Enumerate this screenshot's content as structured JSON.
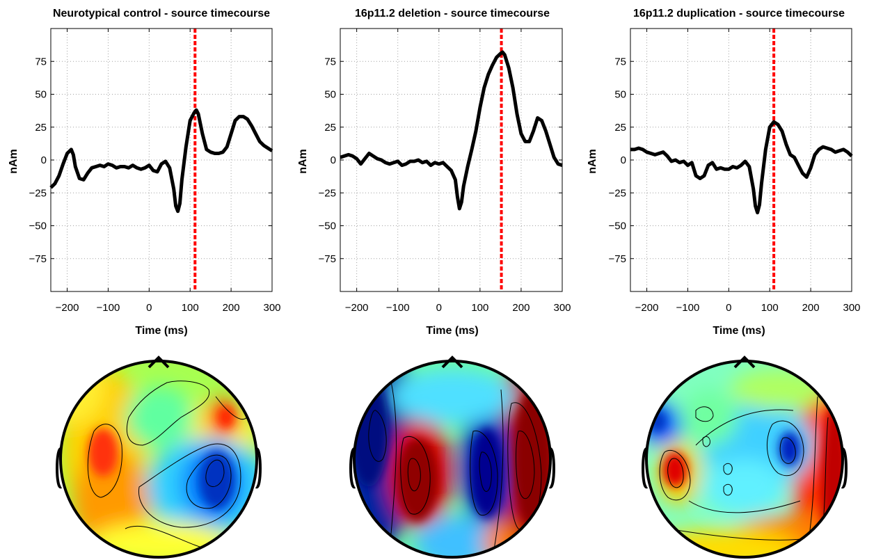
{
  "chart_data": [
    {
      "type": "line",
      "title": "Neurotypical control - source timecourse",
      "xlabel": "Time (ms)",
      "ylabel": "nAm",
      "xlim": [
        -240,
        300
      ],
      "ylim": [
        -100,
        100
      ],
      "xticks": [
        -200,
        -100,
        0,
        100,
        200,
        300
      ],
      "yticks": [
        75,
        50,
        25,
        0,
        -25,
        -50,
        -75
      ],
      "xtick_labels": [
        "−200",
        "−100",
        "0",
        "100",
        "200",
        "300"
      ],
      "ytick_labels": [
        "75",
        "50",
        "25",
        "0",
        "−25",
        "−50",
        "−75"
      ],
      "grid": true,
      "marker_time": 112,
      "marker_color": "#ff0000",
      "line_color": "#000000",
      "series": [
        {
          "x": [
            -240,
            -230,
            -220,
            -210,
            -200,
            -190,
            -185,
            -180,
            -170,
            -160,
            -150,
            -140,
            -130,
            -120,
            -110,
            -100,
            -90,
            -80,
            -70,
            -60,
            -50,
            -40,
            -30,
            -20,
            -10,
            0,
            10,
            20,
            30,
            40,
            50,
            60,
            65,
            70,
            75,
            80,
            90,
            100,
            110,
            115,
            120,
            130,
            140,
            150,
            160,
            170,
            180,
            190,
            200,
            210,
            220,
            230,
            240,
            250,
            260,
            270,
            280,
            290,
            300
          ],
          "y": [
            -21,
            -18,
            -12,
            -3,
            5,
            8,
            4,
            -5,
            -14,
            -15,
            -10,
            -6,
            -5,
            -4,
            -5,
            -3,
            -4,
            -6,
            -5,
            -5,
            -6,
            -4,
            -6,
            -7,
            -6,
            -4,
            -8,
            -9,
            -3,
            -1,
            -6,
            -22,
            -35,
            -39,
            -33,
            -15,
            10,
            30,
            36,
            38,
            35,
            20,
            8,
            6,
            5,
            5,
            6,
            10,
            20,
            30,
            33,
            33,
            31,
            26,
            20,
            14,
            11,
            9,
            7
          ]
        }
      ]
    },
    {
      "type": "line",
      "title": "16p11.2 deletion - source timecourse",
      "xlabel": "Time (ms)",
      "ylabel": "nAm",
      "xlim": [
        -240,
        300
      ],
      "ylim": [
        -100,
        100
      ],
      "xticks": [
        -200,
        -100,
        0,
        100,
        200,
        300
      ],
      "yticks": [
        75,
        50,
        25,
        0,
        -25,
        -50,
        -75
      ],
      "xtick_labels": [
        "−200",
        "−100",
        "0",
        "100",
        "200",
        "300"
      ],
      "ytick_labels": [
        "75",
        "50",
        "25",
        "0",
        "−25",
        "−50",
        "−75"
      ],
      "grid": true,
      "marker_time": 152,
      "marker_color": "#ff0000",
      "line_color": "#000000",
      "series": [
        {
          "x": [
            -240,
            -230,
            -220,
            -210,
            -200,
            -190,
            -180,
            -170,
            -160,
            -150,
            -140,
            -130,
            -120,
            -110,
            -100,
            -90,
            -80,
            -70,
            -60,
            -50,
            -40,
            -30,
            -20,
            -10,
            0,
            10,
            20,
            30,
            40,
            45,
            50,
            55,
            60,
            70,
            80,
            90,
            100,
            110,
            120,
            130,
            140,
            150,
            155,
            160,
            170,
            180,
            190,
            200,
            210,
            220,
            230,
            240,
            250,
            260,
            270,
            280,
            290,
            300
          ],
          "y": [
            2,
            3,
            4,
            3,
            1,
            -3,
            1,
            5,
            3,
            1,
            0,
            -2,
            -3,
            -2,
            -1,
            -4,
            -3,
            -1,
            -1,
            0,
            -2,
            -1,
            -4,
            -2,
            -3,
            -2,
            -5,
            -8,
            -15,
            -28,
            -37,
            -32,
            -20,
            -5,
            8,
            22,
            40,
            55,
            65,
            72,
            78,
            81,
            82,
            80,
            70,
            55,
            35,
            20,
            14,
            14,
            22,
            32,
            30,
            22,
            12,
            2,
            -3,
            -4
          ]
        }
      ]
    },
    {
      "type": "line",
      "title": "16p11.2 duplication - source timecourse",
      "xlabel": "Time (ms)",
      "ylabel": "nAm",
      "xlim": [
        -240,
        300
      ],
      "ylim": [
        -100,
        100
      ],
      "xticks": [
        -200,
        -100,
        0,
        100,
        200,
        300
      ],
      "yticks": [
        75,
        50,
        25,
        0,
        -25,
        -50,
        -75
      ],
      "xtick_labels": [
        "−200",
        "−100",
        "0",
        "100",
        "200",
        "300"
      ],
      "ytick_labels": [
        "75",
        "50",
        "25",
        "0",
        "−25",
        "−50",
        "−75"
      ],
      "grid": true,
      "marker_time": 110,
      "marker_color": "#ff0000",
      "line_color": "#000000",
      "series": [
        {
          "x": [
            -240,
            -230,
            -220,
            -210,
            -200,
            -190,
            -180,
            -170,
            -160,
            -150,
            -140,
            -130,
            -120,
            -110,
            -100,
            -90,
            -80,
            -70,
            -60,
            -50,
            -40,
            -30,
            -20,
            -10,
            0,
            10,
            20,
            30,
            40,
            50,
            60,
            65,
            70,
            75,
            80,
            90,
            100,
            110,
            120,
            130,
            140,
            150,
            160,
            170,
            180,
            190,
            200,
            210,
            220,
            230,
            240,
            250,
            260,
            270,
            280,
            290,
            300
          ],
          "y": [
            8,
            8,
            9,
            8,
            6,
            5,
            4,
            5,
            6,
            3,
            -1,
            0,
            -2,
            -1,
            -4,
            -2,
            -12,
            -14,
            -12,
            -4,
            -2,
            -7,
            -6,
            -7,
            -7,
            -5,
            -6,
            -4,
            -1,
            -5,
            -22,
            -35,
            -40,
            -34,
            -18,
            8,
            25,
            29,
            27,
            22,
            12,
            4,
            2,
            -4,
            -10,
            -13,
            -6,
            4,
            8,
            10,
            9,
            8,
            6,
            7,
            8,
            6,
            3
          ]
        }
      ]
    }
  ],
  "topomaps": [
    {
      "name": "neurotypical-control-topomap"
    },
    {
      "name": "deletion-topomap"
    },
    {
      "name": "duplication-topomap"
    }
  ],
  "colors": {
    "dark_red": "#800000",
    "red": "#ff0000",
    "orange": "#ff8000",
    "yellow": "#ffff00",
    "light_green": "#80ff80",
    "cyan": "#00ffff",
    "blue": "#0080ff",
    "dark_blue": "#00008f"
  }
}
